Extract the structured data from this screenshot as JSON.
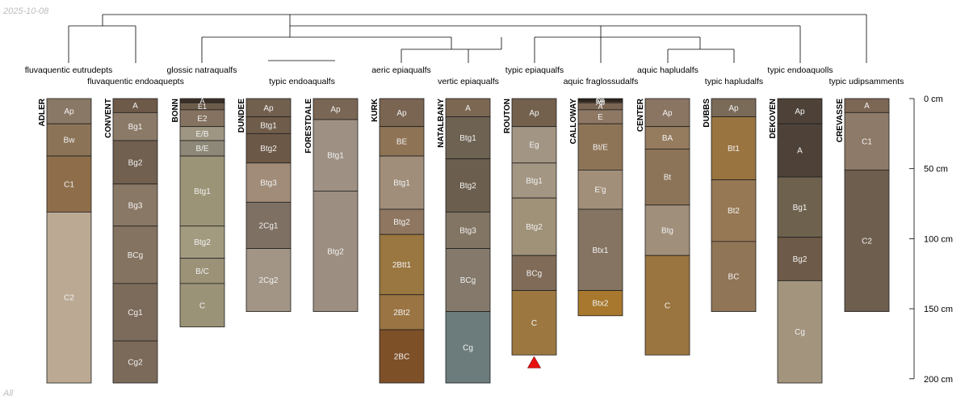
{
  "header": {
    "date": "2025-10-08",
    "mode": "All"
  },
  "depth_axis": {
    "unit": "cm",
    "max": 200,
    "ticks": [
      {
        "value": 0,
        "label": "0 cm"
      },
      {
        "value": 50,
        "label": "50 cm"
      },
      {
        "value": 100,
        "label": "100 cm"
      },
      {
        "value": 150,
        "label": "150 cm"
      },
      {
        "value": 200,
        "label": "200 cm"
      }
    ]
  },
  "taxa": [
    "fluvaquentic eutrudepts",
    "fluvaquentic endoaquepts",
    "glossic natraqualfs",
    "typic endoaqualfs",
    "aeric epiaqualfs",
    "vertic epiaqualfs",
    "typic epiaqualfs",
    "aquic fraglossudalfs",
    "aquic hapludalfs",
    "typic hapludalfs",
    "typic endoaquolls",
    "typic udipsamments"
  ],
  "profiles": [
    {
      "name": "ADLER",
      "horizons": [
        {
          "name": "Ap",
          "top": 0,
          "bottom": 18,
          "color": "#8a7866"
        },
        {
          "name": "Bw",
          "top": 18,
          "bottom": 41,
          "color": "#8b7358"
        },
        {
          "name": "C1",
          "top": 41,
          "bottom": 81,
          "color": "#8e6e4a"
        },
        {
          "name": "C2",
          "top": 81,
          "bottom": 203,
          "color": "#bba994"
        }
      ]
    },
    {
      "name": "CONVENT",
      "horizons": [
        {
          "name": "A",
          "top": 0,
          "bottom": 10,
          "color": "#6e5a49"
        },
        {
          "name": "Bg1",
          "top": 10,
          "bottom": 30,
          "color": "#8c7a68"
        },
        {
          "name": "Bg2",
          "top": 30,
          "bottom": 61,
          "color": "#715f4f"
        },
        {
          "name": "Bg3",
          "top": 61,
          "bottom": 91,
          "color": "#8a7866"
        },
        {
          "name": "BCg",
          "top": 91,
          "bottom": 132,
          "color": "#857361"
        },
        {
          "name": "Cg1",
          "top": 132,
          "bottom": 173,
          "color": "#7c6b5b"
        },
        {
          "name": "Cg2",
          "top": 173,
          "bottom": 203,
          "color": "#7b6a5a"
        }
      ]
    },
    {
      "name": "BONN",
      "horizons": [
        {
          "name": "A",
          "top": 0,
          "bottom": 3,
          "color": "#3a3028"
        },
        {
          "name": "E1",
          "top": 3,
          "bottom": 8,
          "color": "#6c5c4b"
        },
        {
          "name": "E2",
          "top": 8,
          "bottom": 20,
          "color": "#857260"
        },
        {
          "name": "E/B",
          "top": 20,
          "bottom": 30,
          "color": "#9e9682"
        },
        {
          "name": "B/E",
          "top": 30,
          "bottom": 41,
          "color": "#8e8878"
        },
        {
          "name": "Btg1",
          "top": 41,
          "bottom": 91,
          "color": "#9c9477"
        },
        {
          "name": "Btg2",
          "top": 91,
          "bottom": 114,
          "color": "#a39b80"
        },
        {
          "name": "B/C",
          "top": 114,
          "bottom": 132,
          "color": "#9b9278"
        },
        {
          "name": "C",
          "top": 132,
          "bottom": 163,
          "color": "#9b9378"
        }
      ]
    },
    {
      "name": "DUNDEE",
      "horizons": [
        {
          "name": "Ap",
          "top": 0,
          "bottom": 13,
          "color": "#72604e"
        },
        {
          "name": "Btg1",
          "top": 13,
          "bottom": 25,
          "color": "#6f5c4a"
        },
        {
          "name": "Btg2",
          "top": 25,
          "bottom": 46,
          "color": "#6c5846"
        },
        {
          "name": "Btg3",
          "top": 46,
          "bottom": 74,
          "color": "#a08c78"
        },
        {
          "name": "2Cg1",
          "top": 74,
          "bottom": 107,
          "color": "#7e7063"
        },
        {
          "name": "2Cg2",
          "top": 107,
          "bottom": 152,
          "color": "#a29585"
        }
      ]
    },
    {
      "name": "FORESTDALE",
      "horizons": [
        {
          "name": "Ap",
          "top": 0,
          "bottom": 15,
          "color": "#7a6654"
        },
        {
          "name": "Btg1",
          "top": 15,
          "bottom": 66,
          "color": "#9e9184"
        },
        {
          "name": "Btg2",
          "top": 66,
          "bottom": 152,
          "color": "#9c8e80"
        }
      ]
    },
    {
      "name": "KURK",
      "horizons": [
        {
          "name": "Ap",
          "top": 0,
          "bottom": 20,
          "color": "#7a6452"
        },
        {
          "name": "BE",
          "top": 20,
          "bottom": 41,
          "color": "#8e7355"
        },
        {
          "name": "Btg1",
          "top": 41,
          "bottom": 79,
          "color": "#a08e7a"
        },
        {
          "name": "Btg2",
          "top": 79,
          "bottom": 97,
          "color": "#8e7660"
        },
        {
          "name": "2Btt1",
          "top": 97,
          "bottom": 140,
          "color": "#9a7640"
        },
        {
          "name": "2Bt2",
          "top": 140,
          "bottom": 165,
          "color": "#9a7442"
        },
        {
          "name": "2BC",
          "top": 165,
          "bottom": 203,
          "color": "#7e5028"
        }
      ]
    },
    {
      "name": "NATALBANY",
      "horizons": [
        {
          "name": "A",
          "top": 0,
          "bottom": 13,
          "color": "#7c6752"
        },
        {
          "name": "Btg1",
          "top": 13,
          "bottom": 43,
          "color": "#6e6253"
        },
        {
          "name": "Btg2",
          "top": 43,
          "bottom": 81,
          "color": "#6c5e4e"
        },
        {
          "name": "Btg3",
          "top": 81,
          "bottom": 107,
          "color": "#827563"
        },
        {
          "name": "BCg",
          "top": 107,
          "bottom": 152,
          "color": "#84796a"
        },
        {
          "name": "Cg",
          "top": 152,
          "bottom": 203,
          "color": "#6c7c7c"
        }
      ]
    },
    {
      "name": "ROUTON",
      "horizons": [
        {
          "name": "Ap",
          "top": 0,
          "bottom": 20,
          "color": "#73604d"
        },
        {
          "name": "Eg",
          "top": 20,
          "bottom": 46,
          "color": "#a29584"
        },
        {
          "name": "Btg1",
          "top": 46,
          "bottom": 71,
          "color": "#a39683"
        },
        {
          "name": "Btg2",
          "top": 71,
          "bottom": 112,
          "color": "#a09179"
        },
        {
          "name": "BCg",
          "top": 112,
          "bottom": 137,
          "color": "#7f6b58"
        },
        {
          "name": "C",
          "top": 137,
          "bottom": 183,
          "color": "#9c7840"
        }
      ],
      "marker": true
    },
    {
      "name": "CALLOWAY",
      "horizons": [
        {
          "name": "Oi",
          "top": 0,
          "bottom": 1,
          "color": "#2b2017"
        },
        {
          "name": "Oe",
          "top": 1,
          "bottom": 2,
          "color": "#3b2c1e"
        },
        {
          "name": "Ap",
          "top": 2,
          "bottom": 3,
          "color": "#5e4a38"
        },
        {
          "name": "A",
          "top": 3,
          "bottom": 8,
          "color": "#7a6552"
        },
        {
          "name": "E",
          "top": 8,
          "bottom": 18,
          "color": "#8e7864"
        },
        {
          "name": "Bt/E",
          "top": 18,
          "bottom": 51,
          "color": "#8e7456"
        },
        {
          "name": "E'g",
          "top": 51,
          "bottom": 79,
          "color": "#a28f79"
        },
        {
          "name": "Btx1",
          "top": 79,
          "bottom": 137,
          "color": "#857462"
        },
        {
          "name": "Btx2",
          "top": 137,
          "bottom": 155,
          "color": "#a8782e"
        }
      ]
    },
    {
      "name": "CENTER",
      "horizons": [
        {
          "name": "Ap",
          "top": 0,
          "bottom": 20,
          "color": "#8a7563"
        },
        {
          "name": "BA",
          "top": 20,
          "bottom": 36,
          "color": "#957c5e"
        },
        {
          "name": "Bt",
          "top": 36,
          "bottom": 76,
          "color": "#8c7459"
        },
        {
          "name": "Btg",
          "top": 76,
          "bottom": 112,
          "color": "#a08f7b"
        },
        {
          "name": "C",
          "top": 112,
          "bottom": 183,
          "color": "#9b7540"
        }
      ]
    },
    {
      "name": "DUBBS",
      "horizons": [
        {
          "name": "Ap",
          "top": 0,
          "bottom": 13,
          "color": "#7a6a58"
        },
        {
          "name": "Bt1",
          "top": 13,
          "bottom": 58,
          "color": "#9a7440"
        },
        {
          "name": "Bt2",
          "top": 58,
          "bottom": 102,
          "color": "#977855"
        },
        {
          "name": "BC",
          "top": 102,
          "bottom": 152,
          "color": "#917557"
        }
      ]
    },
    {
      "name": "DEKOVEN",
      "horizons": [
        {
          "name": "Ap",
          "top": 0,
          "bottom": 18,
          "color": "#4e4238"
        },
        {
          "name": "A",
          "top": 18,
          "bottom": 56,
          "color": "#4e4238"
        },
        {
          "name": "Bg1",
          "top": 56,
          "bottom": 99,
          "color": "#6e624e"
        },
        {
          "name": "Bg2",
          "top": 99,
          "bottom": 130,
          "color": "#6e5a48"
        },
        {
          "name": "Cg",
          "top": 130,
          "bottom": 203,
          "color": "#a3947e"
        }
      ]
    },
    {
      "name": "CREVASSE",
      "horizons": [
        {
          "name": "A",
          "top": 0,
          "bottom": 10,
          "color": "#7c6654"
        },
        {
          "name": "C1",
          "top": 10,
          "bottom": 51,
          "color": "#8e7a68"
        },
        {
          "name": "C2",
          "top": 51,
          "bottom": 152,
          "color": "#6e5e4e"
        }
      ]
    }
  ],
  "colors": {
    "border": "#1f1f1f",
    "dendrogram": "#000000",
    "marker": "#e81010",
    "label_light": "#f2f2f2"
  }
}
